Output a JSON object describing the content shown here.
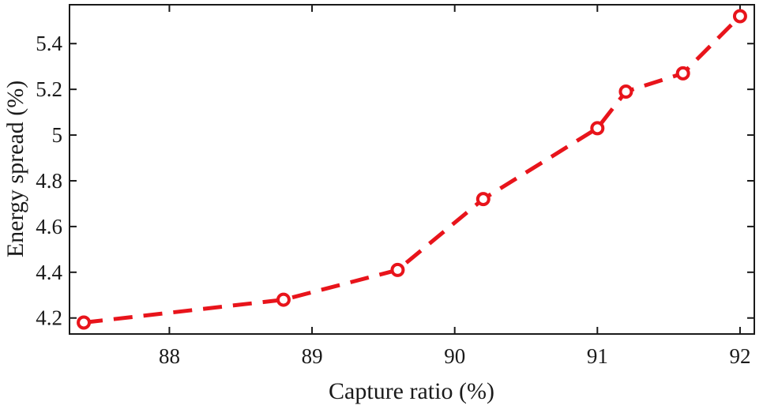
{
  "chart_data": {
    "type": "line",
    "title": "",
    "xlabel": "Capture ratio (%)",
    "ylabel": "Energy spread (%)",
    "xlim": [
      87.3,
      92.1
    ],
    "ylim": [
      4.13,
      5.57
    ],
    "xticks": [
      88,
      89,
      90,
      91,
      92
    ],
    "xtick_labels": [
      "88",
      "89",
      "90",
      "91",
      "92"
    ],
    "yticks": [
      4.2,
      4.4,
      4.6,
      4.8,
      5.0,
      5.2,
      5.4
    ],
    "ytick_labels": [
      "4.2",
      "4.4",
      "4.6",
      "4.8",
      "5",
      "5.2",
      "5.4"
    ],
    "grid": false,
    "legend": "none",
    "series": [
      {
        "color": "#e8141b",
        "line_style": "dashed",
        "marker": "circle",
        "x": [
          87.4,
          88.8,
          89.6,
          90.2,
          91.0,
          91.2,
          91.6,
          92.0
        ],
        "y": [
          4.18,
          4.28,
          4.41,
          4.72,
          5.03,
          5.19,
          5.27,
          5.52
        ]
      }
    ]
  }
}
